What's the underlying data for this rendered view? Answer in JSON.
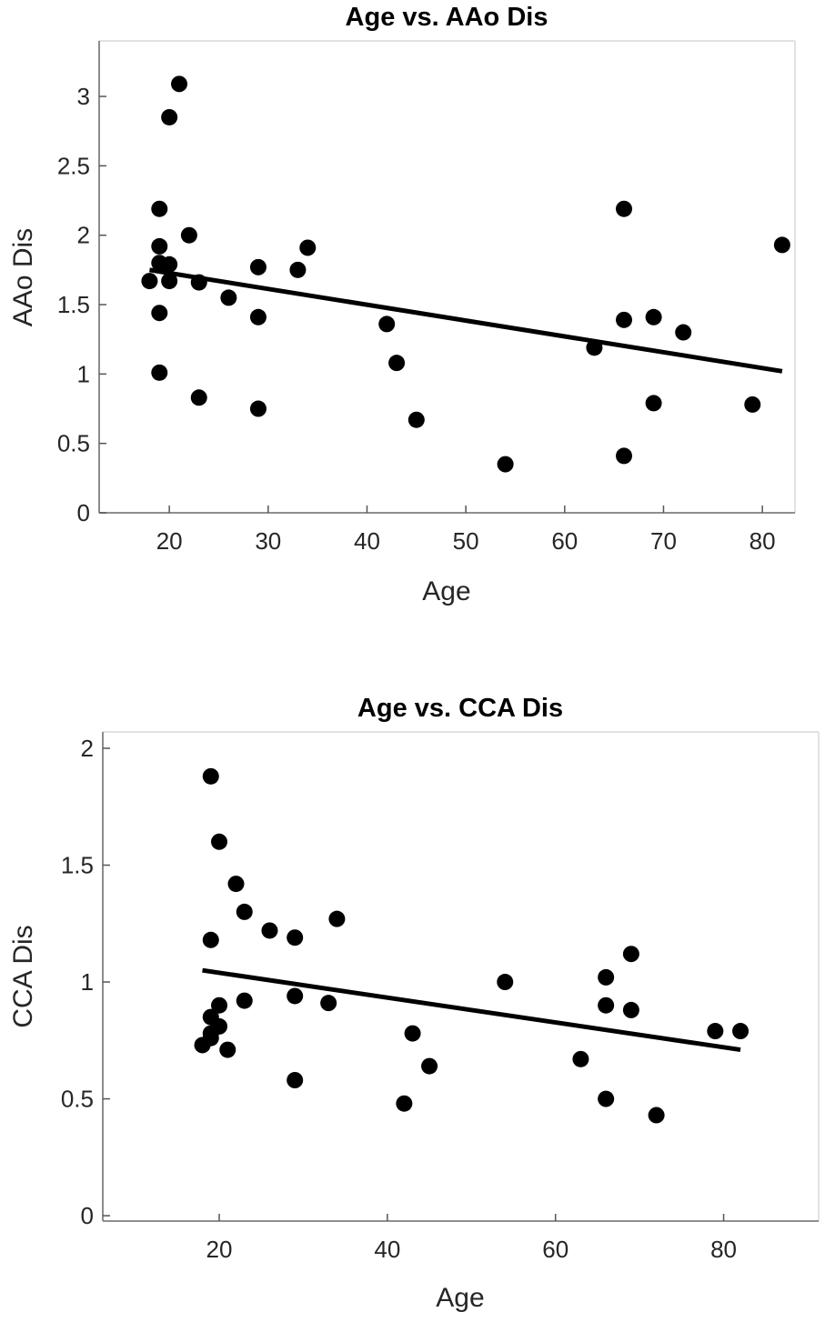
{
  "chart_data": [
    {
      "type": "scatter",
      "title": "Age vs. AAo Dis",
      "xlabel": "Age",
      "ylabel": "AAo Dis",
      "xlim": [
        12.9,
        83.3
      ],
      "ylim": [
        0,
        3.4
      ],
      "xticks": [
        20,
        30,
        40,
        50,
        60,
        70,
        80
      ],
      "yticks": [
        0,
        0.5,
        1,
        1.5,
        2,
        2.5,
        3
      ],
      "ytick_labels": [
        "0",
        "0.5",
        "1",
        "1.5",
        "2",
        "2.5",
        "3"
      ],
      "grid": false,
      "marker_color": "#000000",
      "points": [
        [
          18,
          1.67
        ],
        [
          19,
          2.19
        ],
        [
          19,
          1.92
        ],
        [
          19,
          1.8
        ],
        [
          19,
          1.44
        ],
        [
          19,
          1.01
        ],
        [
          20,
          2.85
        ],
        [
          20,
          1.79
        ],
        [
          20,
          1.67
        ],
        [
          21,
          3.09
        ],
        [
          22,
          2.0
        ],
        [
          23,
          1.66
        ],
        [
          23,
          0.83
        ],
        [
          26,
          1.55
        ],
        [
          29,
          1.77
        ],
        [
          29,
          1.41
        ],
        [
          29,
          0.75
        ],
        [
          33,
          1.75
        ],
        [
          34,
          1.91
        ],
        [
          42,
          1.36
        ],
        [
          43,
          1.08
        ],
        [
          45,
          0.67
        ],
        [
          54,
          0.35
        ],
        [
          63,
          1.19
        ],
        [
          66,
          2.19
        ],
        [
          66,
          1.39
        ],
        [
          66,
          0.41
        ],
        [
          69,
          1.41
        ],
        [
          69,
          0.79
        ],
        [
          72,
          1.3
        ],
        [
          79,
          0.78
        ],
        [
          82,
          1.93
        ]
      ],
      "fit_line": [
        [
          18,
          1.75
        ],
        [
          82,
          1.02
        ]
      ]
    },
    {
      "type": "scatter",
      "title": "Age vs. CCA Dis",
      "xlabel": "Age",
      "ylabel": "CCA Dis",
      "xlim": [
        6.15,
        91.3
      ],
      "ylim": [
        -0.023,
        2.07
      ],
      "xticks": [
        20,
        40,
        60,
        80
      ],
      "yticks": [
        0,
        0.5,
        1,
        1.5,
        2
      ],
      "ytick_labels": [
        "0",
        "0.5",
        "1",
        "1.5",
        "2"
      ],
      "grid": false,
      "marker_color": "#000000",
      "points": [
        [
          19,
          1.88
        ],
        [
          20,
          1.6
        ],
        [
          22,
          1.42
        ],
        [
          23,
          1.3
        ],
        [
          34,
          1.27
        ],
        [
          26,
          1.22
        ],
        [
          29,
          1.19
        ],
        [
          19,
          1.18
        ],
        [
          20,
          0.9
        ],
        [
          23,
          0.92
        ],
        [
          29,
          0.94
        ],
        [
          33,
          0.91
        ],
        [
          19,
          0.85
        ],
        [
          20,
          0.81
        ],
        [
          19,
          0.78
        ],
        [
          19,
          0.76
        ],
        [
          18,
          0.73
        ],
        [
          21,
          0.71
        ],
        [
          29,
          0.58
        ],
        [
          43,
          0.78
        ],
        [
          42,
          0.48
        ],
        [
          45,
          0.64
        ],
        [
          54,
          1.0
        ],
        [
          63,
          0.67
        ],
        [
          66,
          1.02
        ],
        [
          66,
          0.9
        ],
        [
          66,
          0.5
        ],
        [
          69,
          1.12
        ],
        [
          69,
          0.88
        ],
        [
          72,
          0.43
        ],
        [
          79,
          0.79
        ],
        [
          82,
          0.79
        ]
      ],
      "fit_line": [
        [
          18,
          1.05
        ],
        [
          82,
          0.71
        ]
      ]
    }
  ]
}
